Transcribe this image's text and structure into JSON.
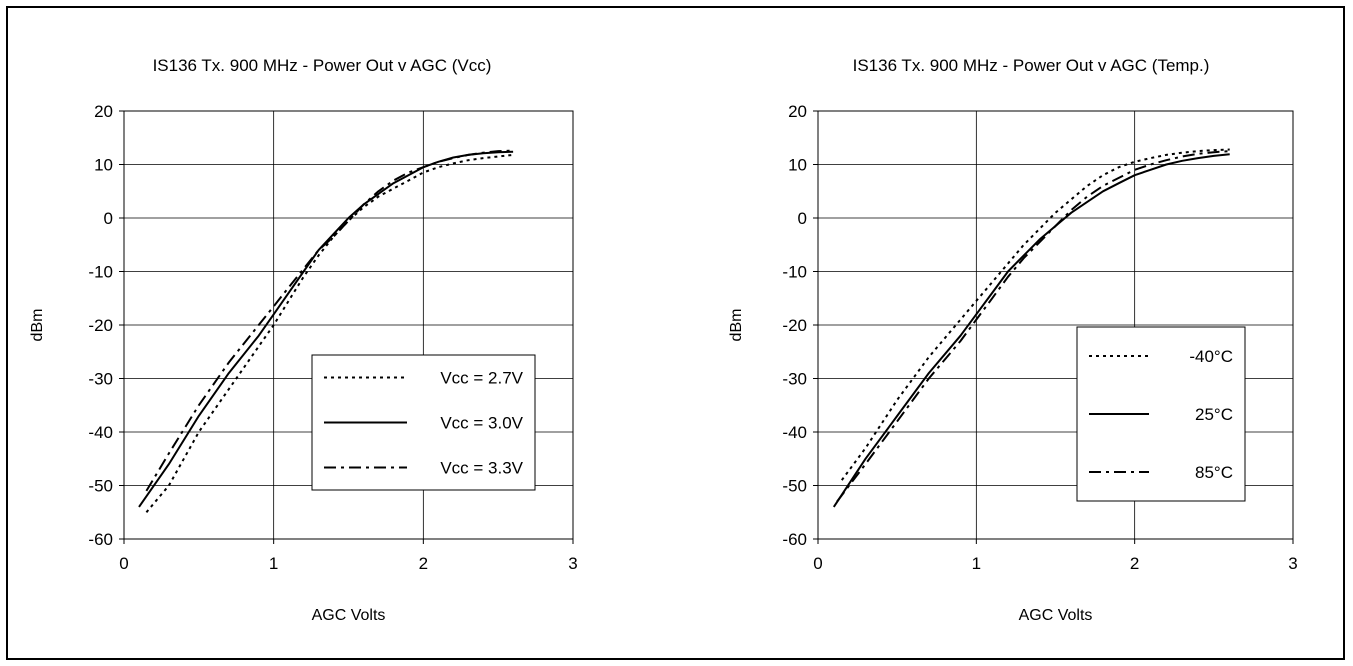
{
  "chart_data": [
    {
      "type": "line",
      "title": "IS136 Tx. 900 MHz - Power Out v AGC (Vcc)",
      "xlabel": "AGC Volts",
      "ylabel": "dBm",
      "xlim": [
        0,
        3
      ],
      "ylim": [
        -60,
        20
      ],
      "xticks": [
        "0",
        "1",
        "2",
        "3"
      ],
      "yticks": [
        "20",
        "10",
        "0",
        "-10",
        "-20",
        "-30",
        "-40",
        "-50",
        "-60"
      ],
      "grid": true,
      "legend_position": "lower-right",
      "series": [
        {
          "name": "Vcc = 2.7V",
          "dash": "dotted",
          "x": [
            0.15,
            0.3,
            0.5,
            0.7,
            0.9,
            1.0,
            1.1,
            1.2,
            1.3,
            1.4,
            1.5,
            1.6,
            1.7,
            1.8,
            1.9,
            2.0,
            2.1,
            2.2,
            2.3,
            2.4,
            2.5,
            2.6
          ],
          "y": [
            -55,
            -50,
            -40,
            -32,
            -24,
            -20,
            -15.5,
            -11,
            -7,
            -3.5,
            -0.5,
            2,
            4,
            5.5,
            7,
            8.5,
            9.5,
            10.2,
            10.8,
            11.2,
            11.5,
            11.8
          ]
        },
        {
          "name": "Vcc = 3.0V",
          "dash": "solid",
          "x": [
            0.1,
            0.3,
            0.5,
            0.7,
            0.9,
            1.0,
            1.1,
            1.2,
            1.3,
            1.4,
            1.5,
            1.6,
            1.7,
            1.8,
            1.9,
            2.0,
            2.1,
            2.2,
            2.3,
            2.4,
            2.5,
            2.6
          ],
          "y": [
            -54,
            -46,
            -37,
            -29,
            -22,
            -18,
            -14,
            -10,
            -6,
            -3,
            0,
            2.5,
            4.5,
            6.5,
            8,
            9.5,
            10.5,
            11.3,
            11.8,
            12.1,
            12.3,
            12.4
          ]
        },
        {
          "name": "Vcc = 3.3V",
          "dash": "dash-dot",
          "x": [
            0.15,
            0.3,
            0.5,
            0.7,
            0.9,
            1.0,
            1.1,
            1.2,
            1.3,
            1.4,
            1.5,
            1.6,
            1.7,
            1.8,
            1.9,
            2.0,
            2.1,
            2.2,
            2.3,
            2.4,
            2.5,
            2.6
          ],
          "y": [
            -51,
            -44,
            -35,
            -27,
            -20,
            -16.5,
            -13,
            -9.5,
            -6,
            -3.5,
            -0.5,
            2.5,
            5,
            7,
            8.5,
            9.5,
            10.5,
            11.2,
            11.8,
            12.2,
            12.5,
            12.6
          ]
        }
      ]
    },
    {
      "type": "line",
      "title": "IS136 Tx. 900 MHz - Power Out v AGC (Temp.)",
      "xlabel": "AGC Volts",
      "ylabel": "dBm",
      "xlim": [
        0,
        3
      ],
      "ylim": [
        -60,
        20
      ],
      "xticks": [
        "0",
        "1",
        "2",
        "3"
      ],
      "yticks": [
        "20",
        "10",
        "0",
        "-10",
        "-20",
        "-30",
        "-40",
        "-50",
        "-60"
      ],
      "grid": true,
      "legend_position": "lower-right",
      "series": [
        {
          "name": "-40°C",
          "dash": "dotted",
          "x": [
            0.15,
            0.3,
            0.5,
            0.7,
            0.9,
            1.0,
            1.1,
            1.2,
            1.3,
            1.4,
            1.5,
            1.6,
            1.7,
            1.8,
            1.9,
            2.0,
            2.1,
            2.2,
            2.3,
            2.4,
            2.5,
            2.6
          ],
          "y": [
            -49,
            -43,
            -34,
            -26,
            -19,
            -15.5,
            -12,
            -8.5,
            -5,
            -2,
            1,
            3.5,
            6,
            8,
            9.5,
            10.5,
            11.2,
            11.8,
            12.2,
            12.5,
            12.7,
            12.8
          ]
        },
        {
          "name": "25°C",
          "dash": "solid",
          "x": [
            0.1,
            0.3,
            0.5,
            0.7,
            0.9,
            1.0,
            1.1,
            1.2,
            1.3,
            1.4,
            1.5,
            1.6,
            1.7,
            1.8,
            1.9,
            2.0,
            2.1,
            2.2,
            2.3,
            2.4,
            2.5,
            2.6
          ],
          "y": [
            -54,
            -45,
            -37,
            -29,
            -22,
            -18,
            -14,
            -10,
            -7,
            -4,
            -1.5,
            1,
            3,
            5,
            6.5,
            8,
            9,
            10,
            10.7,
            11.2,
            11.6,
            11.9
          ]
        },
        {
          "name": "85°C",
          "dash": "dash-dot",
          "x": [
            0.12,
            0.3,
            0.5,
            0.7,
            0.9,
            1.0,
            1.1,
            1.2,
            1.3,
            1.4,
            1.5,
            1.6,
            1.7,
            1.8,
            1.9,
            2.0,
            2.1,
            2.2,
            2.3,
            2.4,
            2.5,
            2.6
          ],
          "y": [
            -53,
            -46,
            -38,
            -30,
            -23,
            -19,
            -15,
            -11,
            -7.5,
            -4.5,
            -1.5,
            1.5,
            4,
            6,
            7.5,
            9,
            10,
            10.8,
            11.5,
            12,
            12.3,
            12.5
          ]
        }
      ]
    }
  ]
}
